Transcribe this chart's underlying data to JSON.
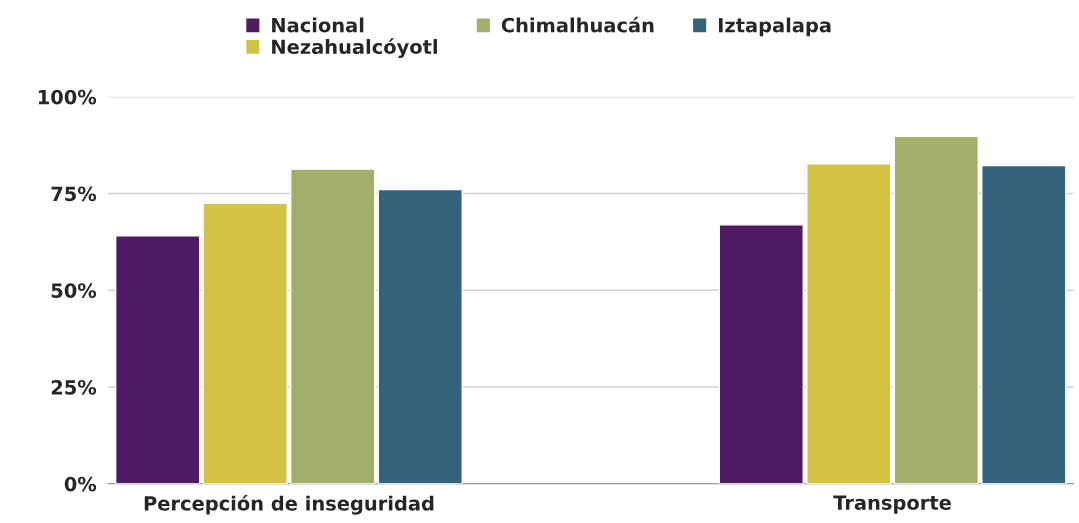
{
  "chart_data": {
    "type": "bar",
    "categories": [
      "Percepción de inseguridad",
      "Transporte"
    ],
    "series": [
      {
        "name": "Nacional",
        "color": "#501a62",
        "values": [
          64.1,
          66.9
        ]
      },
      {
        "name": "Nezahualcóyotl",
        "color": "#d4c243",
        "values": [
          72.5,
          82.7
        ]
      },
      {
        "name": "Chimalhuacán",
        "color": "#a3af69",
        "values": [
          81.3,
          89.8
        ]
      },
      {
        "name": "Iztapalapa",
        "color": "#32637b",
        "values": [
          76.0,
          82.2
        ]
      }
    ],
    "ylim": [
      0,
      100
    ],
    "yticks": [
      {
        "value": 0,
        "label": "0%"
      },
      {
        "value": 25,
        "label": "25%"
      },
      {
        "value": 50,
        "label": "50%"
      },
      {
        "value": 75,
        "label": "75%"
      },
      {
        "value": 100,
        "label": "100%"
      }
    ],
    "grid": "y",
    "legend": "top"
  }
}
